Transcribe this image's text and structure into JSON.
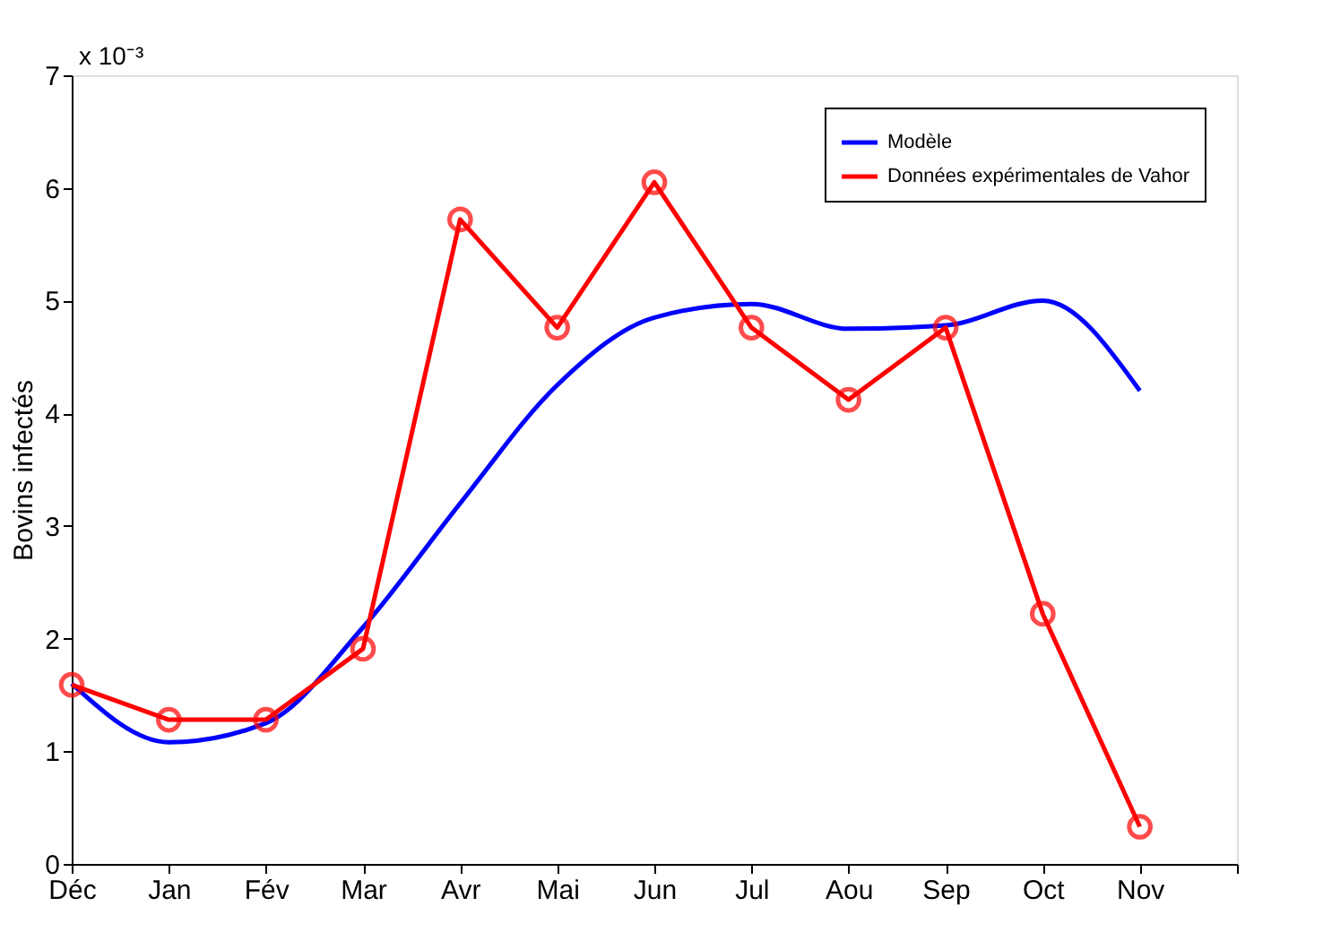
{
  "chart_data": {
    "type": "line",
    "ylabel": "Bovins infectés",
    "annotations": [
      "x 10⁻³"
    ],
    "categories": [
      "Déc",
      "Jan",
      "Fév",
      "Mar",
      "Avr",
      "Mai",
      "Jun",
      "Jul",
      "Aou",
      "Sep",
      "Oct",
      "Nov"
    ],
    "ylim": [
      0,
      7
    ],
    "yticks": [
      0,
      1,
      2,
      3,
      4,
      5,
      6,
      7
    ],
    "grid": false,
    "legend": "top right",
    "series": [
      {
        "name": "Modèle",
        "color": "#0000ff",
        "marker": "none",
        "values": [
          1.6,
          1.08,
          1.25,
          2.1,
          3.2,
          4.25,
          4.85,
          4.97,
          4.75,
          4.78,
          5.0,
          4.2
        ]
      },
      {
        "name": "Données expérimentales de Vahor",
        "color": "#ff0000",
        "marker": "circle",
        "values": [
          1.59,
          1.28,
          1.28,
          1.91,
          5.72,
          4.76,
          6.05,
          4.76,
          4.12,
          4.76,
          2.22,
          0.33
        ]
      }
    ]
  }
}
